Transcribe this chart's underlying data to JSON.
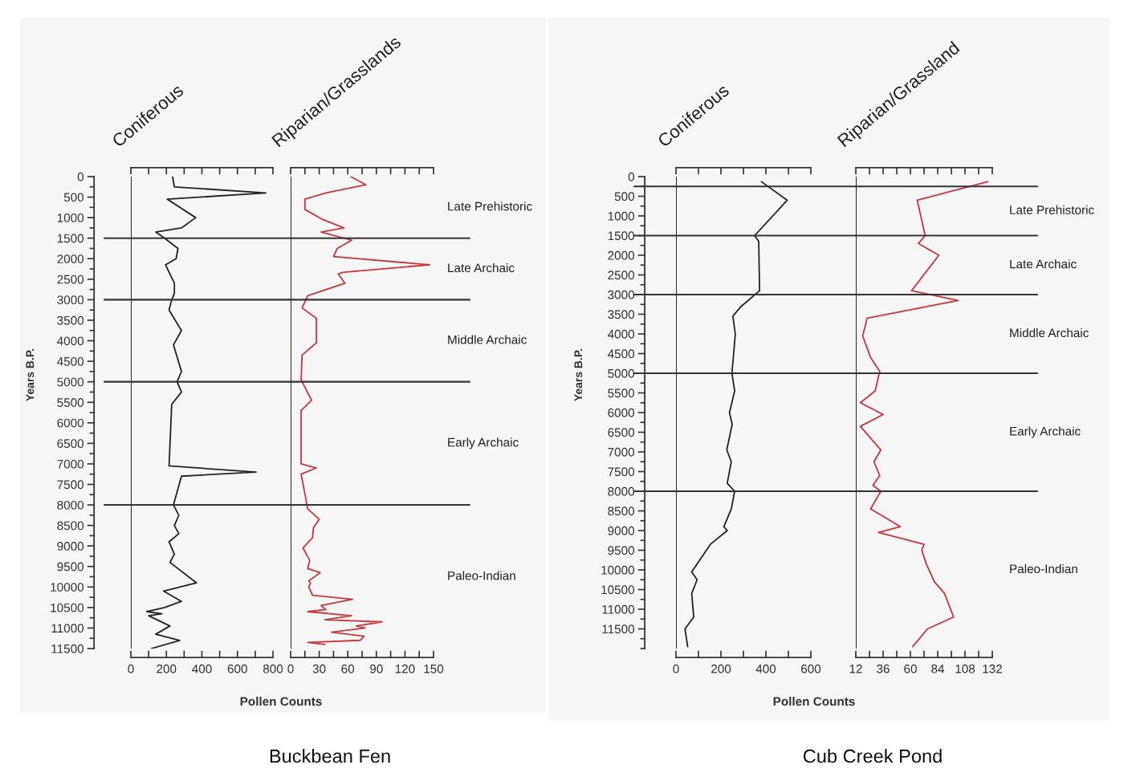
{
  "chart_data": [
    {
      "type": "line",
      "orientation": "horizontal",
      "title": "Coniferous",
      "xlabel": "Pollen Counts",
      "ylabel": "Years B.P.",
      "annotations": [
        "Buckbean Fen"
      ],
      "xlim": [
        0,
        800
      ],
      "xticks": [
        0,
        {
          "value": 100,
          "label": null
        },
        200,
        {
          "value": 300,
          "label": null
        },
        400,
        {
          "value": 500,
          "label": null
        },
        600,
        {
          "value": 700,
          "label": null
        },
        800
      ],
      "ylim": [
        11500,
        0
      ],
      "yticks": [
        0,
        500,
        1000,
        1500,
        2000,
        2500,
        3000,
        3500,
        4000,
        4500,
        5000,
        5500,
        6000,
        6500,
        7000,
        7500,
        8000,
        8500,
        9000,
        9500,
        10000,
        10500,
        11000,
        11500
      ],
      "ref_lines": [
        {
          "axis": "y",
          "value": 1500
        },
        {
          "axis": "y",
          "value": 3000
        },
        {
          "axis": "y",
          "value": 5000
        },
        {
          "axis": "y",
          "value": 8000
        }
      ],
      "series": [
        {
          "color": "#222222",
          "x": [
            0,
            250,
            400,
            550,
            1000,
            1250,
            1350,
            1500,
            1750,
            2000,
            2150,
            2600,
            2850,
            3000,
            3250,
            3750,
            4100,
            4750,
            5000,
            5250,
            5550,
            7050,
            7200,
            7300,
            8000,
            8250,
            8500,
            8700,
            8900,
            9200,
            9400,
            9900,
            10100,
            10350,
            10500,
            10600,
            10650,
            10700,
            10950,
            11150,
            11300,
            11500
          ],
          "values": [
            235,
            245,
            760,
            205,
            365,
            285,
            140,
            190,
            265,
            255,
            195,
            245,
            245,
            230,
            215,
            285,
            240,
            285,
            260,
            285,
            230,
            215,
            705,
            285,
            240,
            270,
            245,
            270,
            215,
            245,
            220,
            370,
            185,
            285,
            190,
            90,
            175,
            100,
            220,
            140,
            275,
            115
          ]
        }
      ]
    },
    {
      "type": "line",
      "orientation": "horizontal",
      "title": "Riparian/Grasslands",
      "tick_labels": "x",
      "xlim": [
        0,
        150
      ],
      "xticks": [
        0,
        {
          "value": 15,
          "label": null
        },
        30,
        {
          "value": 45,
          "label": null
        },
        60,
        {
          "value": 75,
          "label": null
        },
        90,
        {
          "value": 105,
          "label": null
        },
        120,
        {
          "value": 135,
          "label": null
        },
        150
      ],
      "ylim": [
        11500,
        0
      ],
      "ref_lines": [
        {
          "axis": "y",
          "value": 1500
        },
        {
          "axis": "y",
          "value": 3000
        },
        {
          "axis": "y",
          "value": 5000
        },
        {
          "axis": "y",
          "value": 8000
        }
      ],
      "annotations": [
        "Late Prehistoric",
        "Late Archaic",
        "Middle Archaic",
        "Early Archaic",
        "Paleo-Indian"
      ],
      "series": [
        {
          "color": "#c8373c",
          "x": [
            0,
            200,
            400,
            550,
            800,
            1050,
            1250,
            1350,
            1550,
            1750,
            1950,
            2150,
            2330,
            2370,
            2600,
            2900,
            3200,
            3450,
            4050,
            4350,
            4950,
            5450,
            5700,
            7000,
            7100,
            7250,
            8100,
            8350,
            8550,
            8800,
            9050,
            9350,
            9550,
            9650,
            9850,
            9900,
            10000,
            10200,
            10300,
            10450,
            10550,
            10600,
            10700,
            10800,
            10850,
            10950,
            11000,
            11100,
            11200,
            11300,
            11350,
            11400
          ],
          "values": [
            63,
            79,
            37,
            15,
            15,
            34,
            56,
            32,
            64,
            49,
            45,
            146,
            56,
            50,
            57,
            18,
            12,
            27,
            27,
            12,
            11,
            22,
            11,
            11,
            27,
            11,
            18,
            30,
            24,
            23,
            13,
            20,
            18,
            31,
            19,
            21,
            19,
            23,
            65,
            32,
            37,
            18,
            64,
            36,
            96,
            69,
            78,
            43,
            77,
            73,
            18,
            36
          ]
        }
      ]
    },
    {
      "type": "line",
      "orientation": "horizontal",
      "title": "Coniferous",
      "xlabel": "Pollen Counts",
      "ylabel": "Years B.P.",
      "annotations": [
        "Cub Creek Pond"
      ],
      "xlim": [
        0,
        600
      ],
      "xticks": [
        0,
        {
          "value": 100,
          "label": null
        },
        200,
        {
          "value": 300,
          "label": null
        },
        400,
        {
          "value": 500,
          "label": null
        },
        600
      ],
      "ylim": [
        12000,
        0
      ],
      "yticks": [
        0,
        500,
        1000,
        1500,
        2000,
        2500,
        3000,
        3500,
        4000,
        4500,
        5000,
        5500,
        6000,
        6500,
        7000,
        7500,
        8000,
        8500,
        9000,
        9500,
        10000,
        10500,
        11000,
        11500
      ],
      "ref_lines": [
        {
          "axis": "y",
          "value": 250
        },
        {
          "axis": "y",
          "value": 1500
        },
        {
          "axis": "y",
          "value": 3000
        },
        {
          "axis": "y",
          "value": 5000
        },
        {
          "axis": "y",
          "value": 8000
        }
      ],
      "series": [
        {
          "color": "#222222",
          "x": [
            130,
            600,
            1500,
            1650,
            2900,
            3300,
            3550,
            4000,
            5000,
            5450,
            6000,
            6300,
            6950,
            7250,
            7800,
            8000,
            8450,
            8900,
            9000,
            9350,
            10050,
            10250,
            10600,
            11200,
            11500,
            11950
          ],
          "values": [
            380,
            495,
            350,
            368,
            372,
            290,
            253,
            264,
            249,
            261,
            238,
            250,
            226,
            246,
            228,
            261,
            246,
            213,
            228,
            153,
            70,
            94,
            70,
            79,
            40,
            52
          ]
        }
      ]
    },
    {
      "type": "line",
      "orientation": "horizontal",
      "title": "Riparian/Grassland",
      "tick_labels": "x",
      "xlim": [
        12,
        132
      ],
      "xticks": [
        12,
        {
          "value": 24,
          "label": null
        },
        36,
        {
          "value": 48,
          "label": null
        },
        60,
        {
          "value": 72,
          "label": null
        },
        84,
        {
          "value": 96,
          "label": null
        },
        108,
        {
          "value": 120,
          "label": null
        },
        132
      ],
      "ylim": [
        12000,
        0
      ],
      "ref_lines": [
        {
          "axis": "y",
          "value": 250
        },
        {
          "axis": "y",
          "value": 1500
        },
        {
          "axis": "y",
          "value": 3000
        },
        {
          "axis": "y",
          "value": 5000
        },
        {
          "axis": "y",
          "value": 8000
        }
      ],
      "annotations": [
        "Late Prehistoric",
        "Late Archaic",
        "Middle Archaic",
        "Early Archaic",
        "Paleo-Indian"
      ],
      "series": [
        {
          "color": "#c8373c",
          "x": [
            130,
            600,
            1500,
            1700,
            2000,
            2900,
            3150,
            3600,
            4050,
            4600,
            4950,
            5450,
            5750,
            6050,
            6350,
            6950,
            7250,
            7600,
            7850,
            8000,
            8450,
            8900,
            9050,
            9350,
            9500,
            9850,
            10300,
            10600,
            11200,
            11500,
            11950
          ],
          "values": [
            128,
            66,
            73,
            67,
            85,
            61,
            102,
            22,
            18,
            25,
            33,
            29,
            16,
            36,
            16,
            34,
            28,
            33,
            27,
            34,
            25,
            51,
            32,
            72,
            70,
            74,
            81,
            90,
            98,
            75,
            62
          ]
        }
      ]
    }
  ]
}
